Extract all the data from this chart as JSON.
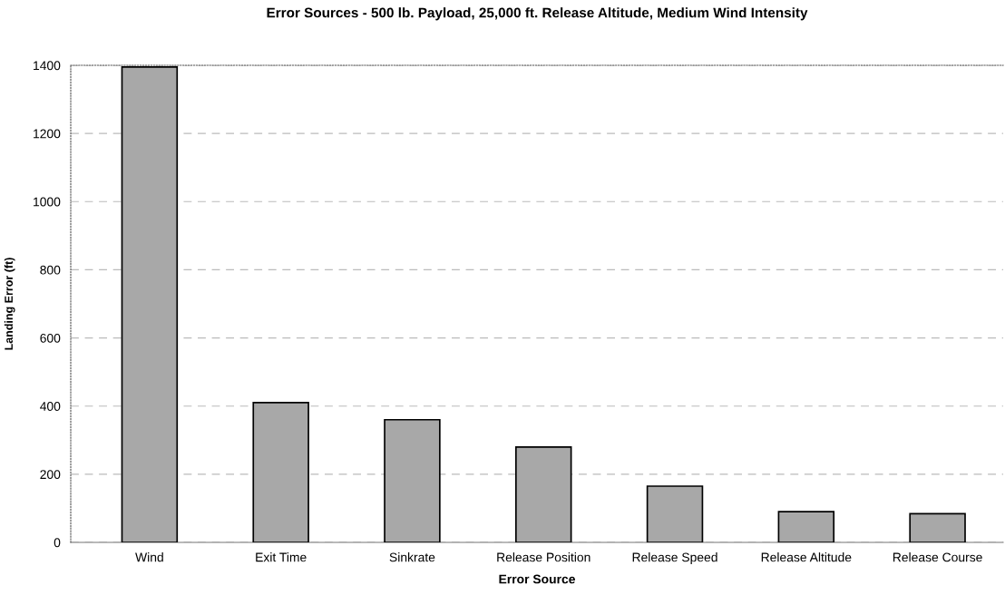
{
  "chart_data": {
    "type": "bar",
    "title": "Error Sources - 500 lb. Payload, 25,000 ft. Release Altitude, Medium Wind Intensity",
    "xlabel": "Error Source",
    "ylabel": "Landing Error (ft)",
    "categories": [
      "Wind",
      "Exit Time",
      "Sinkrate",
      "Release Position",
      "Release Speed",
      "Release Altitude",
      "Release Course"
    ],
    "values": [
      1395,
      410,
      360,
      280,
      165,
      90,
      84
    ],
    "color": "#a8a8a8",
    "ylim": [
      0,
      1400
    ],
    "yticks": [
      0,
      200,
      400,
      600,
      800,
      1000,
      1200,
      1400
    ],
    "grid": "y"
  }
}
